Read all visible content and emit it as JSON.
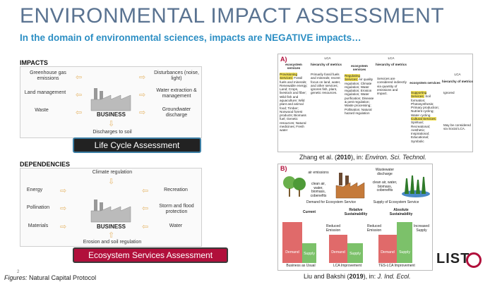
{
  "slide": {
    "title": "ENVIRONMENTAL IMPACT ASSESSMENT",
    "subtitle": "In the domain of environmental sciences, impacts are NEGATIVE impacts…",
    "page_number": "2",
    "figures_label": "Figures:",
    "figures_source": "Natural Capital Protocol"
  },
  "impacts": {
    "label": "IMPACTS",
    "items": {
      "ghg": "Greenhouse gas emissions",
      "land": "Land management",
      "waste": "Waste",
      "disturbances": "Disturbances (noise, light)",
      "water": "Water extraction & management",
      "groundwater": "Groundwater discharge",
      "soil": "Discharges to soil"
    },
    "business": "BUSINESS",
    "button": "Life Cycle Assessment"
  },
  "dependencies": {
    "label": "DEPENDENCIES",
    "items": {
      "climate": "Climate regulation",
      "energy": "Energy",
      "recreation": "Recreation",
      "pollination": "Pollination",
      "storm": "Storm and flood protection",
      "materials": "Materials",
      "water": "Water",
      "erosion": "Erosion and soil regulation"
    },
    "business": "BUSINESS",
    "button": "Ecosystem Services Assessment"
  },
  "zhang_figure": {
    "panel_letter": "A)",
    "lca": "LCA",
    "hierarchy": "hierarchy of metrics",
    "ecosystem_services": "ecosystem services",
    "col1": {
      "highlight": "Provisioning Services:",
      "text": "Fossil fuels and minerals; Renewable energy; Land; Crops, livestock and fiber; Wild fish and aquaculture; Wild plant and animal food; Timber; Nonwood forest products; Biomass fuel; Genetic resources; Natural medicines; Fresh water",
      "metric": "Primarily fossil fuels and minerals; recent focus on land, water, and other services; ignores fish, plant, genetic resources."
    },
    "col2": {
      "highlight": "Regulating Services:",
      "text": "Air quality regulation; Climate regulation; Water regulation; Erosion regulation; Water purification; Disease & pest regulation; Waste processing; Pollination; Natural hazard regulation",
      "metric": "Services are considered indirectly via quantity of emissions and impact."
    },
    "col3": {
      "highlight1": "Supporting Services:",
      "text1": "Soil formation; Photosynthesis; Primary production; Nutrient cycling; Water cycling",
      "highlight2": "Cultural Services:",
      "text2": "Spiritual; Recreational; Aesthetic; Inspirational; Educational; Symbolic",
      "metric1": "Ignored",
      "metric2": "May be considered via Social LCA."
    },
    "citation": {
      "authors": "Zhang et al. (",
      "year": "2010",
      "mid": "), in: ",
      "journal": "Environ. Sci. Technol."
    }
  },
  "liu_figure": {
    "panel_letter": "B)",
    "air_emissions": "air emissions",
    "wastewater": "Wastewater discharge",
    "clean1": "clean air, water, biomass, cobenefits",
    "clean2": "clean air, water, biomass, cobenefits",
    "demand_label": "Demand for Ecosystem Service",
    "supply_label": "Supply of Ecosystem Service",
    "current": "Current",
    "relative": "Relative Sustainability",
    "absolute": "Absolute Sustainability",
    "reduced1": "Reduced Emission",
    "reduced2": "Reduced Emission",
    "increased": "Increased Supply",
    "demand": "Demand",
    "supply": "Supply",
    "scenarios": [
      "Business as Usual",
      "LCA Improvement",
      "TES-LCA Improvement"
    ],
    "citation": {
      "authors": "Liu and Bakshi (",
      "year": "2019",
      "mid": "), in: ",
      "journal": "J. Ind. Ecol."
    }
  },
  "logo": "LIST",
  "colors": {
    "title": "#5a7391",
    "subtitle": "#2d8fc4",
    "demand": "#e06a6a",
    "supply": "#7cc16a",
    "esa": "#b10f3b"
  }
}
